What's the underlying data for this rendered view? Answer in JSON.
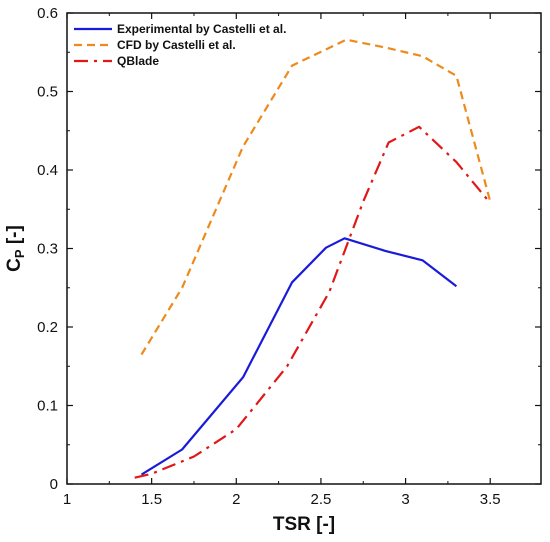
{
  "chart_data": {
    "type": "line",
    "title": "",
    "xlabel": "TSR [-]",
    "ylabel": {
      "main": "C",
      "sub": "P",
      "unit": " [-]"
    },
    "xlim": [
      1,
      3.8
    ],
    "ylim": [
      0,
      0.6
    ],
    "x_ticks": [
      1,
      1.5,
      2,
      2.5,
      3,
      3.5
    ],
    "x_tick_labels": [
      "1",
      "1.5",
      "2",
      "2.5",
      "3",
      "3.5"
    ],
    "y_ticks": [
      0,
      0.1,
      0.2,
      0.3,
      0.4,
      0.5,
      0.6
    ],
    "y_tick_labels": [
      "0",
      "0.1",
      "0.2",
      "0.3",
      "0.4",
      "0.5",
      "0.6"
    ],
    "grid": false,
    "legend_position": "top-left",
    "series": [
      {
        "name": "Experimental by Castelli et al.",
        "color": "#1a1adb",
        "style": "solid",
        "x": [
          1.44,
          1.68,
          2.04,
          2.33,
          2.53,
          2.64,
          2.88,
          3.1,
          3.3
        ],
        "y": [
          0.012,
          0.044,
          0.136,
          0.257,
          0.301,
          0.313,
          0.297,
          0.285,
          0.252
        ]
      },
      {
        "name": "CFD by Castelli et al.",
        "color": "#ee8a1c",
        "style": "dashed",
        "x": [
          1.44,
          1.68,
          2.04,
          2.33,
          2.65,
          2.88,
          3.1,
          3.3,
          3.5
        ],
        "y": [
          0.165,
          0.25,
          0.43,
          0.533,
          0.566,
          0.556,
          0.545,
          0.52,
          0.36
        ]
      },
      {
        "name": "QBlade",
        "color": "#e01818",
        "style": "dashdot",
        "x": [
          1.4,
          1.5,
          1.75,
          2.0,
          2.3,
          2.55,
          2.75,
          2.9,
          3.08,
          3.3,
          3.5
        ],
        "y": [
          0.008,
          0.013,
          0.035,
          0.07,
          0.15,
          0.245,
          0.36,
          0.435,
          0.455,
          0.41,
          0.358
        ]
      }
    ]
  }
}
